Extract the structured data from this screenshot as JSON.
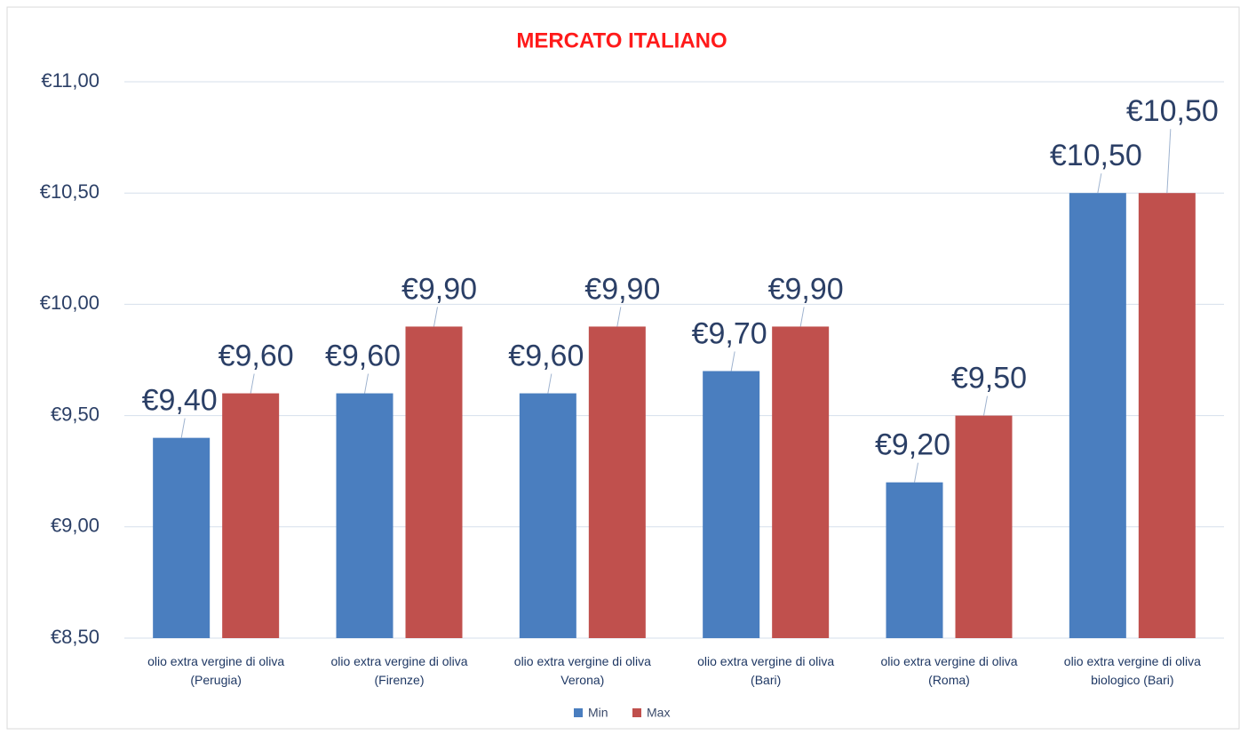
{
  "chart_data": {
    "type": "bar",
    "title": "MERCATO ITALIANO",
    "categories": [
      "olio extra vergine di oliva (Perugia)",
      "olio extra vergine di oliva (Firenze)",
      "olio extra vergine di oliva Verona)",
      "olio extra vergine di oliva (Bari)",
      "olio extra vergine di oliva (Roma)",
      "olio extra vergine di oliva biologico (Bari)"
    ],
    "series": [
      {
        "name": "Min",
        "color": "#4a7ebf",
        "values": [
          9.4,
          9.6,
          9.6,
          9.7,
          9.2,
          10.5
        ],
        "value_labels": [
          "€9,40",
          "€9,60",
          "€9,60",
          "€9,70",
          "€9,20",
          "€10,50"
        ]
      },
      {
        "name": "Max",
        "color": "#c0504d",
        "values": [
          9.6,
          9.9,
          9.9,
          9.9,
          9.5,
          10.5
        ],
        "value_labels": [
          "€9,60",
          "€9,90",
          "€9,90",
          "€9,90",
          "€9,50",
          "€10,50"
        ]
      }
    ],
    "ylim": [
      8.5,
      11
    ],
    "yticks": [
      {
        "value": 8.5,
        "label": "€8,50"
      },
      {
        "value": 9,
        "label": "€9,00"
      },
      {
        "value": 9.5,
        "label": "€9,50"
      },
      {
        "value": 10,
        "label": "€10,00"
      },
      {
        "value": 10.5,
        "label": "€10,50"
      },
      {
        "value": 11,
        "label": "€11,00"
      }
    ],
    "grid": true,
    "legend": "bottom"
  }
}
